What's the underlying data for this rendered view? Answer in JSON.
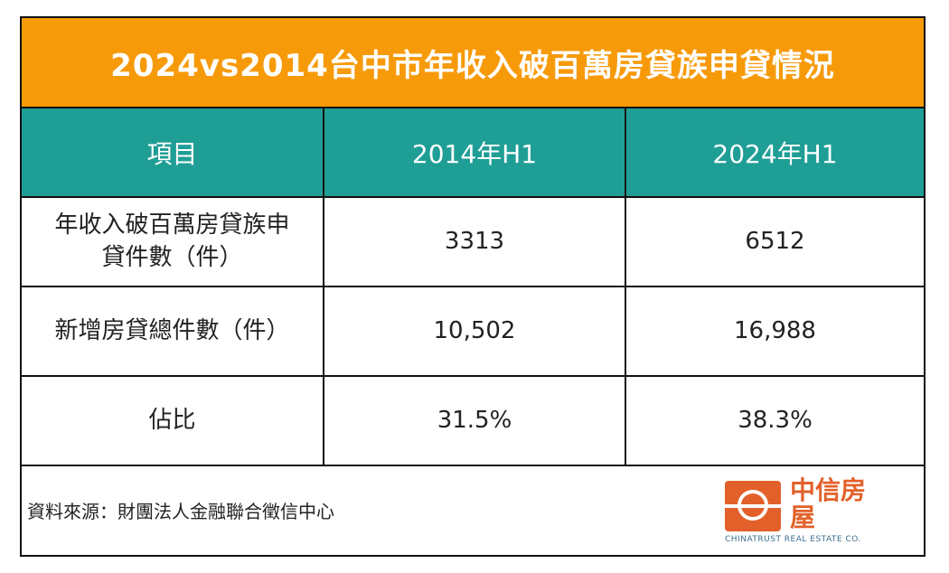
{
  "title": "2024vs2014台中市年收入破百萬房貸族申貸情況",
  "table": {
    "headers": [
      "項目",
      "2014年H1",
      "2024年H1"
    ],
    "rows": [
      {
        "label": "年收入破百萬房貸族申貸件數（件）",
        "v2014": "3313",
        "v2024": "6512"
      },
      {
        "label": "新增房貸總件數（件）",
        "v2014": "10,502",
        "v2024": "16,988"
      },
      {
        "label": "佔比",
        "v2014": "31.5%",
        "v2024": "38.3%"
      }
    ]
  },
  "footer": {
    "source": "資料來源：財團法人金融聯合徵信中心",
    "logo_name": "中信房屋",
    "logo_sub": "CHINATRUST REAL ESTATE CO."
  },
  "colors": {
    "title_bg": "#f79a0a",
    "header_bg": "#1f9e96",
    "logo": "#e2612a"
  }
}
